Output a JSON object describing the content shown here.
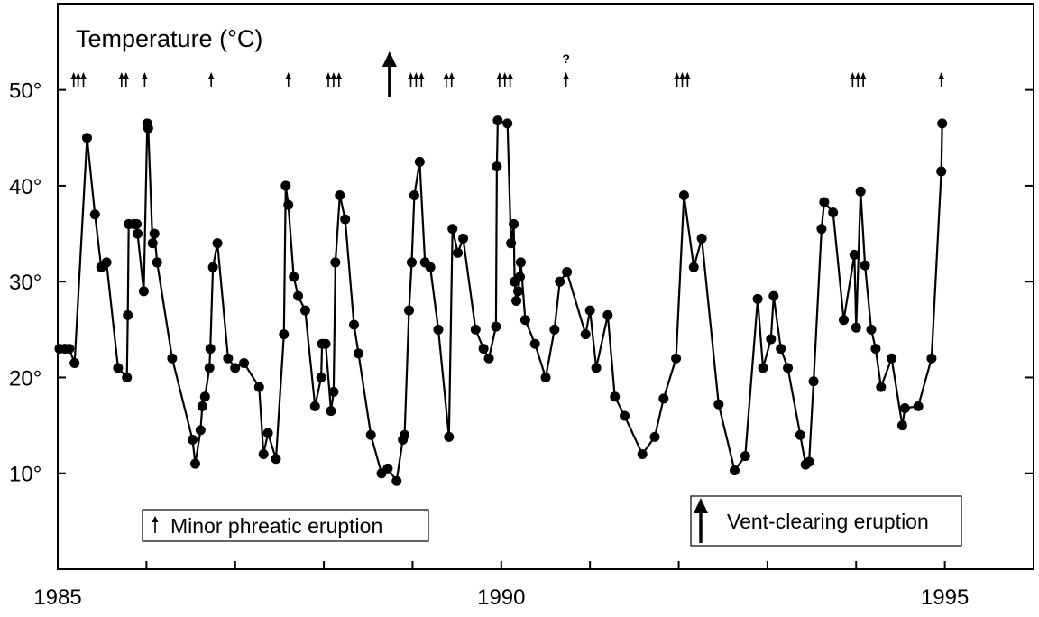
{
  "chart_data": {
    "type": "line",
    "title": "Temperature (°C)",
    "xlabel": "",
    "ylabel": "",
    "xlim": [
      1985.0,
      1996.0
    ],
    "ylim": [
      0,
      59
    ],
    "grid": false,
    "x_ticks": [
      {
        "value": 1985,
        "label": "1985"
      },
      {
        "value": 1990,
        "label": "1990"
      },
      {
        "value": 1995,
        "label": "1995"
      }
    ],
    "y_ticks": [
      {
        "value": 10,
        "label": "10°"
      },
      {
        "value": 20,
        "label": "20°"
      },
      {
        "value": 30,
        "label": "30°"
      },
      {
        "value": 40,
        "label": "40°"
      },
      {
        "value": 50,
        "label": "50°"
      }
    ],
    "series": [
      {
        "name": "",
        "color": "#000000",
        "points": [
          [
            1985.02,
            23.0
          ],
          [
            1985.08,
            23.0
          ],
          [
            1985.13,
            23.0
          ],
          [
            1985.19,
            21.5
          ],
          [
            1985.33,
            45.0
          ],
          [
            1985.42,
            37.0
          ],
          [
            1985.49,
            31.5
          ],
          [
            1985.55,
            32.0
          ],
          [
            1985.68,
            21.0
          ],
          [
            1985.78,
            20.0
          ],
          [
            1985.79,
            26.5
          ],
          [
            1985.8,
            36.0
          ],
          [
            1985.86,
            36.0
          ],
          [
            1985.89,
            36.0
          ],
          [
            1985.9,
            35.0
          ],
          [
            1985.97,
            29.0
          ],
          [
            1986.01,
            46.5
          ],
          [
            1986.02,
            46.0
          ],
          [
            1986.07,
            34.0
          ],
          [
            1986.09,
            35.0
          ],
          [
            1986.12,
            32.0
          ],
          [
            1986.29,
            22.0
          ],
          [
            1986.52,
            13.5
          ],
          [
            1986.55,
            11.0
          ],
          [
            1986.61,
            14.5
          ],
          [
            1986.63,
            17.0
          ],
          [
            1986.66,
            18.0
          ],
          [
            1986.71,
            21.0
          ],
          [
            1986.72,
            23.0
          ],
          [
            1986.75,
            31.5
          ],
          [
            1986.8,
            34.0
          ],
          [
            1986.92,
            22.0
          ],
          [
            1987.0,
            21.0
          ],
          [
            1987.1,
            21.5
          ],
          [
            1987.27,
            19.0
          ],
          [
            1987.32,
            12.0
          ],
          [
            1987.37,
            14.2
          ],
          [
            1987.46,
            11.5
          ],
          [
            1987.55,
            24.5
          ],
          [
            1987.57,
            40.0
          ],
          [
            1987.6,
            38.0
          ],
          [
            1987.66,
            30.5
          ],
          [
            1987.71,
            28.5
          ],
          [
            1987.79,
            27.0
          ],
          [
            1987.9,
            17.0
          ],
          [
            1987.97,
            20.0
          ],
          [
            1987.98,
            23.5
          ],
          [
            1988.02,
            23.5
          ],
          [
            1988.08,
            16.5
          ],
          [
            1988.11,
            18.5
          ],
          [
            1988.13,
            32.0
          ],
          [
            1988.18,
            39.0
          ],
          [
            1988.24,
            36.5
          ],
          [
            1988.34,
            25.5
          ],
          [
            1988.39,
            22.5
          ],
          [
            1988.53,
            14.0
          ],
          [
            1988.65,
            10.0
          ],
          [
            1988.72,
            10.5
          ],
          [
            1988.82,
            9.2
          ],
          [
            1988.89,
            13.5
          ],
          [
            1988.91,
            14.0
          ],
          [
            1988.96,
            27.0
          ],
          [
            1988.99,
            32.0
          ],
          [
            1989.02,
            39.0
          ],
          [
            1989.08,
            42.5
          ],
          [
            1989.14,
            32.0
          ],
          [
            1989.2,
            31.5
          ],
          [
            1989.29,
            25.0
          ],
          [
            1989.41,
            13.8
          ],
          [
            1989.45,
            35.5
          ],
          [
            1989.51,
            33.0
          ],
          [
            1989.57,
            34.5
          ],
          [
            1989.71,
            25.0
          ],
          [
            1989.8,
            23.0
          ],
          [
            1989.86,
            22.0
          ],
          [
            1989.94,
            25.3
          ],
          [
            1989.95,
            42.0
          ],
          [
            1989.96,
            46.8
          ],
          [
            1990.07,
            46.5
          ],
          [
            1990.11,
            34.0
          ],
          [
            1990.14,
            36.0
          ],
          [
            1990.15,
            30.0
          ],
          [
            1990.17,
            28.0
          ],
          [
            1990.19,
            29.0
          ],
          [
            1990.21,
            30.5
          ],
          [
            1990.22,
            32.0
          ],
          [
            1990.27,
            26.0
          ],
          [
            1990.38,
            23.5
          ],
          [
            1990.5,
            20.0
          ],
          [
            1990.6,
            25.0
          ],
          [
            1990.66,
            30.0
          ],
          [
            1990.74,
            31.0
          ],
          [
            1990.95,
            24.5
          ],
          [
            1991.0,
            27.0
          ],
          [
            1991.07,
            21.0
          ],
          [
            1991.2,
            26.5
          ],
          [
            1991.28,
            18.0
          ],
          [
            1991.39,
            16.0
          ],
          [
            1991.59,
            12.0
          ],
          [
            1991.73,
            13.8
          ],
          [
            1991.83,
            17.8
          ],
          [
            1991.97,
            22.0
          ],
          [
            1992.06,
            39.0
          ],
          [
            1992.17,
            31.5
          ],
          [
            1992.26,
            34.5
          ],
          [
            1992.45,
            17.2
          ],
          [
            1992.63,
            10.3
          ],
          [
            1992.75,
            11.8
          ],
          [
            1992.89,
            28.2
          ],
          [
            1992.95,
            21.0
          ],
          [
            1993.04,
            24.0
          ],
          [
            1993.07,
            28.5
          ],
          [
            1993.15,
            23.0
          ],
          [
            1993.23,
            21.0
          ],
          [
            1993.37,
            14.0
          ],
          [
            1993.43,
            10.9
          ],
          [
            1993.47,
            11.2
          ],
          [
            1993.52,
            19.6
          ],
          [
            1993.61,
            35.5
          ],
          [
            1993.64,
            38.3
          ],
          [
            1993.74,
            37.2
          ],
          [
            1993.86,
            26.0
          ],
          [
            1993.98,
            32.8
          ],
          [
            1994.0,
            25.2
          ],
          [
            1994.05,
            39.4
          ],
          [
            1994.1,
            31.7
          ],
          [
            1994.17,
            25.0
          ],
          [
            1994.22,
            23.0
          ],
          [
            1994.28,
            19.0
          ],
          [
            1994.4,
            22.0
          ],
          [
            1994.52,
            15.0
          ],
          [
            1994.55,
            16.8
          ],
          [
            1994.7,
            17.0
          ],
          [
            1994.85,
            22.0
          ],
          [
            1994.96,
            41.5
          ],
          [
            1994.97,
            46.5
          ]
        ]
      }
    ],
    "eruptions": {
      "minor": [
        1985.18,
        1985.23,
        1985.29,
        1985.72,
        1985.77,
        1985.98,
        1986.73,
        1987.6,
        1988.05,
        1988.11,
        1988.17,
        1988.98,
        1989.04,
        1989.1,
        1989.38,
        1989.44,
        1989.98,
        1990.04,
        1990.1,
        1990.73,
        1991.98,
        1992.04,
        1992.1,
        1993.96,
        1994.02,
        1994.08,
        1994.96
      ],
      "minor_uncertain": [
        1990.73
      ],
      "vent_clearing": [
        1988.74
      ]
    },
    "annotations": {
      "uncertain_mark": "?"
    },
    "legend": [
      {
        "symbol": "small-arrow",
        "label": "Minor phreatic eruption",
        "position": "bottom-left"
      },
      {
        "symbol": "large-arrow",
        "label": "Vent-clearing eruption",
        "position": "bottom-right"
      }
    ]
  }
}
